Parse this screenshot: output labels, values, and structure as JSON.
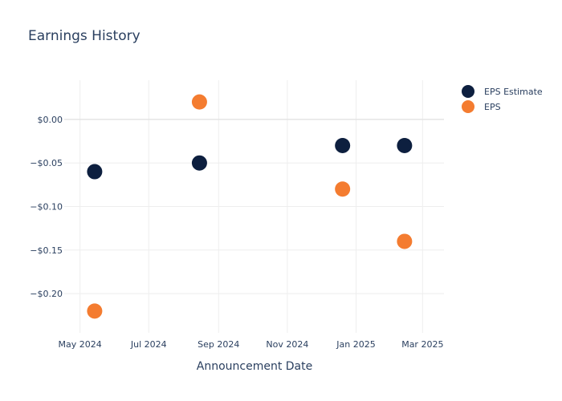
{
  "chart_data": {
    "type": "scatter",
    "title": "Earnings History",
    "xlabel": "Announcement Date",
    "ylabel": "",
    "x_axis_type": "date",
    "xlim": [
      "2024-04-17",
      "2025-03-20"
    ],
    "ylim": [
      -0.245,
      0.045
    ],
    "x_ticks": [
      {
        "date": "2024-05-01",
        "label": "May 2024"
      },
      {
        "date": "2024-07-01",
        "label": "Jul 2024"
      },
      {
        "date": "2024-09-01",
        "label": "Sep 2024"
      },
      {
        "date": "2024-11-01",
        "label": "Nov 2024"
      },
      {
        "date": "2025-01-01",
        "label": "Jan 2025"
      },
      {
        "date": "2025-03-01",
        "label": "Mar 2025"
      }
    ],
    "y_ticks": [
      {
        "value": 0.0,
        "label": "$0.00"
      },
      {
        "value": -0.05,
        "label": "−$0.05"
      },
      {
        "value": -0.1,
        "label": "−$0.10"
      },
      {
        "value": -0.15,
        "label": "−$0.15"
      },
      {
        "value": -0.2,
        "label": "−$0.20"
      }
    ],
    "grid": true,
    "legend_position": "top-right",
    "series": [
      {
        "name": "EPS Estimate",
        "color": "#0d1f3f",
        "points": [
          {
            "x": "2024-05-14",
            "y": -0.06
          },
          {
            "x": "2024-08-15",
            "y": -0.05
          },
          {
            "x": "2024-12-20",
            "y": -0.03
          },
          {
            "x": "2025-02-13",
            "y": -0.03
          }
        ]
      },
      {
        "name": "EPS",
        "color": "#f47c30",
        "points": [
          {
            "x": "2024-05-14",
            "y": -0.22
          },
          {
            "x": "2024-08-15",
            "y": 0.02
          },
          {
            "x": "2024-12-20",
            "y": -0.08
          },
          {
            "x": "2025-02-13",
            "y": -0.14
          }
        ]
      }
    ]
  }
}
